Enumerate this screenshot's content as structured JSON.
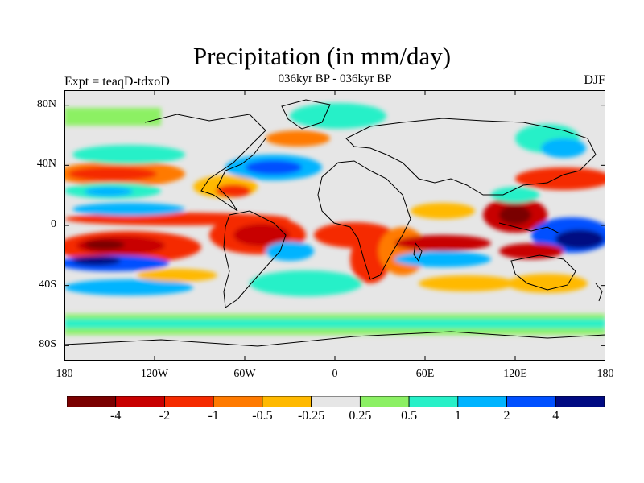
{
  "title": "Precipitation (in mm/day)",
  "subtitle": "036kyr BP - 036kyr BP",
  "experiment_label": "Expt = teaqD-tdxoD",
  "season_label": "DJF",
  "map": {
    "projection": "cylindrical equidistant",
    "lon_range": [
      -180,
      180
    ],
    "lat_range": [
      -90,
      90
    ],
    "content": "precipitation difference field with coastlines"
  },
  "axes": {
    "lat_ticks": [
      {
        "value": 80,
        "label": "80N"
      },
      {
        "value": 40,
        "label": "40N"
      },
      {
        "value": 0,
        "label": "0"
      },
      {
        "value": -40,
        "label": "40S"
      },
      {
        "value": -80,
        "label": "80S"
      }
    ],
    "lon_ticks": [
      {
        "value": -180,
        "label": "180"
      },
      {
        "value": -120,
        "label": "120W"
      },
      {
        "value": -60,
        "label": "60W"
      },
      {
        "value": 0,
        "label": "0"
      },
      {
        "value": 60,
        "label": "60E"
      },
      {
        "value": 120,
        "label": "120E"
      },
      {
        "value": 180,
        "label": "180"
      }
    ]
  },
  "colorbar": {
    "colors": [
      "#7a0000",
      "#c80000",
      "#f52a00",
      "#ff7a00",
      "#ffb900",
      "#e6e6e6",
      "#8cf064",
      "#28f0c8",
      "#00b4ff",
      "#0050ff",
      "#000a82"
    ],
    "levels": [
      {
        "value": -4,
        "label": "-4"
      },
      {
        "value": -2,
        "label": "-2"
      },
      {
        "value": -1,
        "label": "-1"
      },
      {
        "value": -0.5,
        "label": "-0.5"
      },
      {
        "value": -0.25,
        "label": "-0.25"
      },
      {
        "value": 0.25,
        "label": "0.25"
      },
      {
        "value": 0.5,
        "label": "0.5"
      },
      {
        "value": 1,
        "label": "1"
      },
      {
        "value": 2,
        "label": "2"
      },
      {
        "value": 4,
        "label": "4"
      }
    ]
  }
}
